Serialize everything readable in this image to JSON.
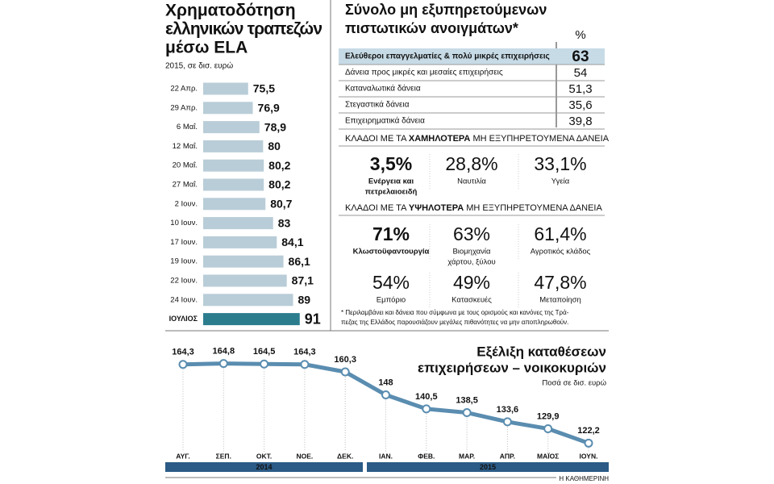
{
  "chart_data": [
    {
      "type": "bar",
      "orientation": "horizontal",
      "title_lines": [
        "Χρηματοδότηση",
        "ελληνικών τραπεζών",
        "μέσω ELA"
      ],
      "subtitle": "2015, σε δισ. ευρώ",
      "categories": [
        "22 Απρ.",
        "29 Απρ.",
        "6 Μαΐ.",
        "12 Μαΐ.",
        "20 Μαΐ.",
        "27 Μαΐ.",
        "2 Ιουν.",
        "10 Ιουν.",
        "17 Ιουν.",
        "19 Ιουν.",
        "22 Ιουν.",
        "24 Ιουν.",
        "ΙΟΥΛΙΟΣ"
      ],
      "values": [
        75.5,
        76.9,
        78.9,
        80,
        80.2,
        80.2,
        80.7,
        83,
        84.1,
        86.1,
        87.1,
        89,
        91
      ],
      "value_labels": [
        "75,5",
        "76,9",
        "78,9",
        "80",
        "80,2",
        "80,2",
        "80,7",
        "83",
        "84,1",
        "86,1",
        "87,1",
        "89",
        "91"
      ],
      "colors": [
        "#b9cdd8",
        "#b9cdd8",
        "#b9cdd8",
        "#b9cdd8",
        "#b9cdd8",
        "#b9cdd8",
        "#b9cdd8",
        "#b9cdd8",
        "#b9cdd8",
        "#b9cdd8",
        "#b9cdd8",
        "#b9cdd8",
        "#2b7d8e"
      ],
      "xlim": [
        62,
        100
      ]
    },
    {
      "type": "line",
      "title_lines": [
        "Εξέλιξη καταθέσεων",
        "επιχειρήσεων – νοικοκυριών"
      ],
      "subtitle": "Ποσά σε δισ. ευρώ",
      "categories": [
        "ΑΥΓ.",
        "ΣΕΠ.",
        "ΟΚΤ.",
        "ΝΟΕ.",
        "ΔΕΚ.",
        "ΙΑΝ.",
        "ΦΕΒ.",
        "ΜΑΡ.",
        "ΑΠΡ.",
        "ΜΑΪΟΣ",
        "ΙΟΥΝ."
      ],
      "values": [
        164.3,
        164.8,
        164.5,
        164.3,
        160.3,
        148,
        140.5,
        138.5,
        133.6,
        129.9,
        122.2
      ],
      "value_labels": [
        "164,3",
        "164,8",
        "164,5",
        "164,3",
        "160,3",
        "148",
        "140,5",
        "138,5",
        "133,6",
        "129,9",
        "122,2"
      ],
      "year_labels": [
        "2014",
        "2015"
      ],
      "color": "#5a8db0",
      "ylim": [
        115,
        178
      ]
    }
  ],
  "npl": {
    "title_lines": [
      "Σύνολο μη εξυπηρετούμενων",
      "πιστωτικών ανοιγμάτων*"
    ],
    "unit": "%",
    "rows": [
      [
        "Ελεύθεροι επαγγελματίες & πολύ μικρές επιχειρήσεις",
        "63"
      ],
      [
        "Δάνεια προς μικρές και μεσαίες επιχειρήσεις",
        "54"
      ],
      [
        "Καταναλωτικά δάνεια",
        "51,3"
      ],
      [
        "Στεγαστικά δάνεια",
        "35,6"
      ],
      [
        "Επιχειρηματικά δάνεια",
        "39,8"
      ]
    ]
  },
  "low": {
    "heading": [
      "ΚΛΑΔΟΙ ΜΕ ΤΑ",
      "ΧΑΜΗΛΟΤΕΡΑ",
      "ΜΗ ΕΞΥΠΗΡΕΤΟΥΜΕΝΑ ΔΑΝΕΙΑ"
    ],
    "items": [
      {
        "value": "3,5%",
        "label": [
          "Ενέργεια και",
          "πετρελαιοειδή"
        ],
        "color": "#2b7d8e"
      },
      {
        "value": "28,8%",
        "label": [
          "Ναυτιλία"
        ],
        "color": "#93b6c8"
      },
      {
        "value": "33,1%",
        "label": [
          "Υγεία"
        ],
        "color": "#93b6c8"
      }
    ]
  },
  "high": {
    "heading": [
      "ΚΛΑΔΟΙ ΜΕ ΤΑ",
      "ΥΨΗΛΟΤΕΡΑ",
      "ΜΗ ΕΞΥΠΗΡΕΤΟΥΜΕΝΑ ΔΑΝΕΙΑ"
    ],
    "items": [
      {
        "value": "71%",
        "label": [
          "Κλωστοϋφαντουργία"
        ],
        "color": "#2b7d8e"
      },
      {
        "value": "63%",
        "label": [
          "Βιομηχανία",
          "χάρτου, ξύλου"
        ],
        "color": "#93b6c8"
      },
      {
        "value": "61,4%",
        "label": [
          "Αγροτικός κλάδος"
        ],
        "color": "#93b6c8"
      },
      {
        "value": "54%",
        "label": [
          "Εμπόριο"
        ],
        "color": "#93b6c8"
      },
      {
        "value": "49%",
        "label": [
          "Κατασκευές"
        ],
        "color": "#93b6c8"
      },
      {
        "value": "47,8%",
        "label": [
          "Μεταποίηση"
        ],
        "color": "#93b6c8"
      }
    ]
  },
  "footnote": [
    "* Περιλαμβάνει και δάνεια που σύμφωνα με τους ορισμούς και κανόνες της Τρά-",
    "πεζας της Ελλάδος παρουσιάζουν μεγάλες πιθανότητες να μην αποπληρωθούν."
  ],
  "source": "Η ΚΑΘΗΜΕΡΙΝΗ"
}
